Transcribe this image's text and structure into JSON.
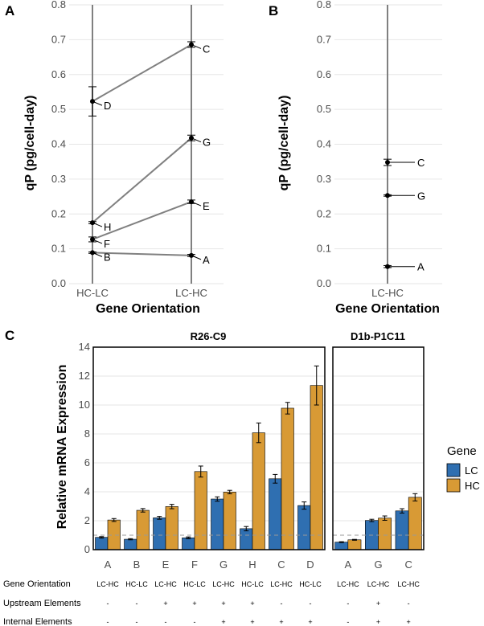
{
  "colors": {
    "lc": "#2f6fb1",
    "hc": "#d89a35",
    "line": "#808080",
    "point": "#000000",
    "ref_line": "#999999"
  },
  "chart_data": [
    {
      "panel": "A",
      "type": "line",
      "title": "",
      "xlabel": "Gene Orientation",
      "ylabel": "qP (pg/cell-day)",
      "x_categories": [
        "HC-LC",
        "LC-HC"
      ],
      "ylim": [
        0,
        0.8
      ],
      "yticks": [
        "0.0",
        "0.1",
        "0.2",
        "0.3",
        "0.4",
        "0.5",
        "0.6",
        "0.7",
        "0.8"
      ],
      "lines": [
        {
          "hc_lc_value": 0.523,
          "hc_lc_err": 0.042,
          "hc_lc_label": "D",
          "lc_hc_value": 0.686,
          "lc_hc_err": 0.008,
          "lc_hc_label": "C"
        },
        {
          "hc_lc_value": 0.175,
          "hc_lc_err": 0.003,
          "hc_lc_label": "H",
          "lc_hc_value": 0.418,
          "lc_hc_err": 0.008,
          "lc_hc_label": "G"
        },
        {
          "hc_lc_value": 0.127,
          "hc_lc_err": 0.007,
          "hc_lc_label": "F",
          "lc_hc_value": 0.235,
          "lc_hc_err": 0.005,
          "lc_hc_label": "E"
        },
        {
          "hc_lc_value": 0.089,
          "hc_lc_err": 0.002,
          "hc_lc_label": "B",
          "lc_hc_value": 0.081,
          "lc_hc_err": 0.003,
          "lc_hc_label": "A"
        }
      ]
    },
    {
      "panel": "B",
      "type": "scatter",
      "title": "",
      "xlabel": "Gene Orientation",
      "ylabel": "qP (pg/cell-day)",
      "x_categories": [
        "LC-HC"
      ],
      "ylim": [
        0,
        0.8
      ],
      "yticks": [
        "0.0",
        "0.1",
        "0.2",
        "0.3",
        "0.4",
        "0.5",
        "0.6",
        "0.7",
        "0.8"
      ],
      "points": [
        {
          "label": "C",
          "value": 0.348,
          "err": 0.009
        },
        {
          "label": "G",
          "value": 0.253,
          "err": 0.002
        },
        {
          "label": "A",
          "value": 0.049,
          "err": 0.003
        }
      ]
    },
    {
      "panel": "C",
      "type": "bar",
      "title": "",
      "ylabel": "Relative mRNA Expression",
      "ylim": [
        0,
        14
      ],
      "yticks": [
        "0",
        "2",
        "4",
        "6",
        "8",
        "10",
        "12",
        "14"
      ],
      "reference_line": 1,
      "legend": {
        "title": "Gene",
        "entries": [
          "LC",
          "HC"
        ],
        "position": "right"
      },
      "facets": [
        {
          "name": "R26-C9",
          "categories": [
            "A",
            "B",
            "E",
            "F",
            "G",
            "H",
            "C",
            "D"
          ],
          "orientation": [
            "LC-HC",
            "HC-LC",
            "LC-HC",
            "HC-LC",
            "LC-HC",
            "HC-LC",
            "LC-HC",
            "HC-LC"
          ],
          "upstream": [
            "-",
            "-",
            "+",
            "+",
            "+",
            "+",
            "-",
            "-"
          ],
          "internal": [
            "-",
            "-",
            "-",
            "-",
            "+",
            "+",
            "+",
            "+"
          ],
          "series": [
            {
              "name": "LC",
              "values": [
                0.85,
                0.72,
                2.2,
                0.82,
                3.5,
                1.45,
                4.9,
                3.05
              ],
              "errors": [
                0.05,
                0.04,
                0.1,
                0.06,
                0.15,
                0.15,
                0.3,
                0.25
              ]
            },
            {
              "name": "HC",
              "values": [
                2.05,
                2.72,
                2.98,
                5.4,
                3.98,
                8.08,
                9.78,
                11.35
              ],
              "errors": [
                0.1,
                0.12,
                0.15,
                0.38,
                0.12,
                0.68,
                0.4,
                1.35
              ]
            }
          ]
        },
        {
          "name": "D1b-P1C11",
          "categories": [
            "A",
            "G",
            "C"
          ],
          "orientation": [
            "LC-HC",
            "LC-HC",
            "LC-HC"
          ],
          "upstream": [
            "-",
            "+",
            "-"
          ],
          "internal": [
            "-",
            "+",
            "+"
          ],
          "series": [
            {
              "name": "LC",
              "values": [
                0.52,
                2.02,
                2.68
              ],
              "errors": [
                0.03,
                0.08,
                0.15
              ]
            },
            {
              "name": "HC",
              "values": [
                0.68,
                2.18,
                3.62
              ],
              "errors": [
                0.03,
                0.15,
                0.25
              ]
            }
          ]
        }
      ],
      "row_labels": {
        "orientation": "Gene Orientation",
        "upstream": "Upstream Elements",
        "internal": "Internal Elements"
      }
    }
  ]
}
